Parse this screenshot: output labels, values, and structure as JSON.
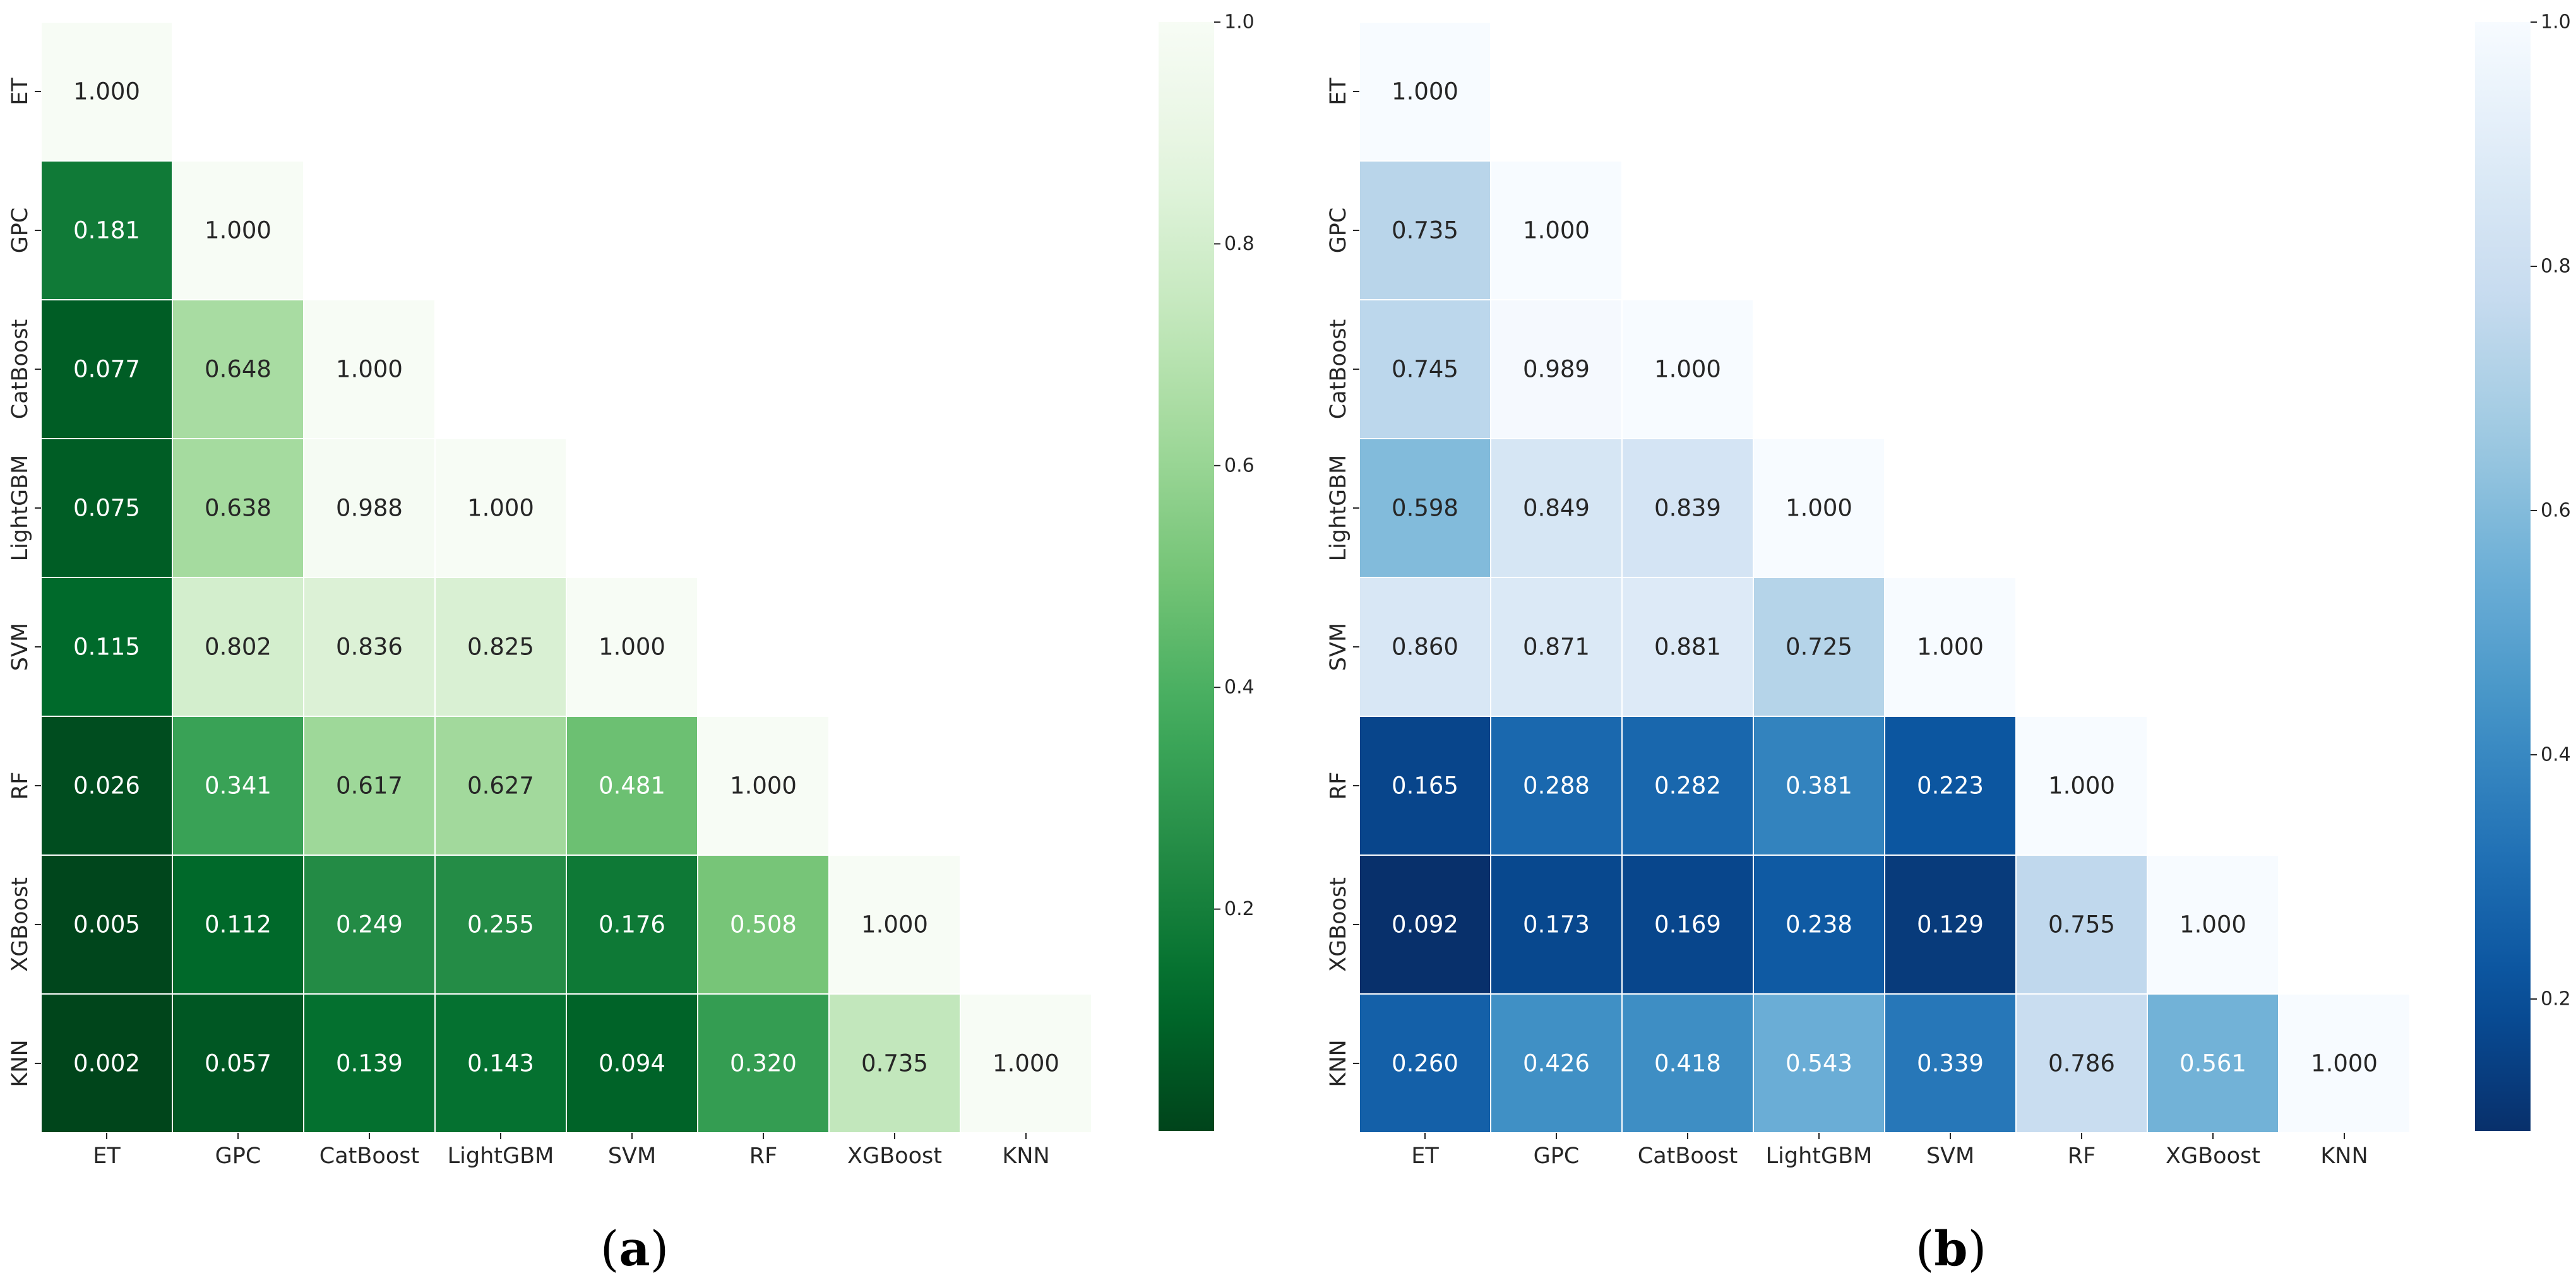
{
  "chart_data": [
    {
      "type": "heatmap",
      "panel_label": "(a)",
      "panel_letter": "a",
      "colormap": "Greens",
      "labels": [
        "ET",
        "GPC",
        "CatBoost",
        "LightGBM",
        "SVM",
        "RF",
        "XGBoost",
        "KNN"
      ],
      "matrix": [
        [
          1.0
        ],
        [
          0.181,
          1.0
        ],
        [
          0.077,
          0.648,
          1.0
        ],
        [
          0.075,
          0.638,
          0.988,
          1.0
        ],
        [
          0.115,
          0.802,
          0.836,
          0.825,
          1.0
        ],
        [
          0.026,
          0.341,
          0.617,
          0.627,
          0.481,
          1.0
        ],
        [
          0.005,
          0.112,
          0.249,
          0.255,
          0.176,
          0.508,
          1.0
        ],
        [
          0.002,
          0.057,
          0.139,
          0.143,
          0.094,
          0.32,
          0.735,
          1.0
        ]
      ],
      "colorbar": {
        "range": [
          0.0,
          1.0
        ],
        "ticks": [
          "0.2",
          "0.4",
          "0.6",
          "0.8",
          "1.0"
        ],
        "tick_values": [
          0.2,
          0.4,
          0.6,
          0.8,
          1.0
        ]
      }
    },
    {
      "type": "heatmap",
      "panel_label": "(b)",
      "panel_letter": "b",
      "colormap": "Blues",
      "labels": [
        "ET",
        "GPC",
        "CatBoost",
        "LightGBM",
        "SVM",
        "RF",
        "XGBoost",
        "KNN"
      ],
      "matrix": [
        [
          1.0
        ],
        [
          0.735,
          1.0
        ],
        [
          0.745,
          0.989,
          1.0
        ],
        [
          0.598,
          0.849,
          0.839,
          1.0
        ],
        [
          0.86,
          0.871,
          0.881,
          0.725,
          1.0
        ],
        [
          0.165,
          0.288,
          0.282,
          0.381,
          0.223,
          1.0
        ],
        [
          0.092,
          0.173,
          0.169,
          0.238,
          0.129,
          0.755,
          1.0
        ],
        [
          0.26,
          0.426,
          0.418,
          0.543,
          0.339,
          0.786,
          0.561,
          1.0
        ]
      ],
      "colorbar": {
        "range": [
          0.092,
          1.0
        ],
        "ticks": [
          "0.2",
          "0.4",
          "0.6",
          "0.8",
          "1.0"
        ],
        "tick_values": [
          0.2,
          0.4,
          0.6,
          0.8,
          1.0
        ]
      }
    }
  ],
  "colors": {
    "greens": [
      "#00441b",
      "#006d2c",
      "#238b45",
      "#41ab5d",
      "#74c476",
      "#a1d99b",
      "#c7e9c0",
      "#e5f5e0",
      "#f7fcf5"
    ],
    "blues": [
      "#08306b",
      "#08519c",
      "#2171b5",
      "#4292c6",
      "#6baed6",
      "#9ecae1",
      "#c6dbef",
      "#deebf7",
      "#f7fbff"
    ],
    "text_light": "#ffffff",
    "text_dark": "#262626"
  }
}
